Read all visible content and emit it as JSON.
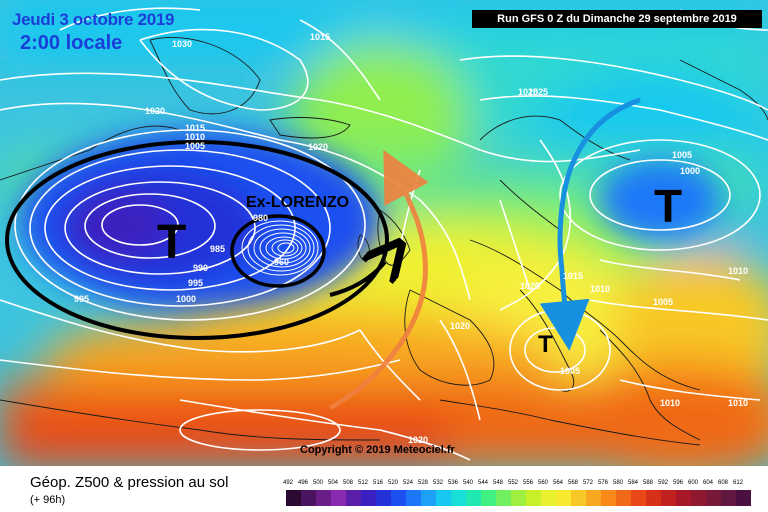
{
  "header": {
    "date_title": "Jeudi 3 octobre 2019",
    "local_time": "2:00 locale",
    "run_info": "Run GFS 0 Z du Dimanche 29 septembre 2019"
  },
  "annotations": {
    "storm_label": "Ex-LORENZO",
    "low_symbols": [
      "T",
      "T",
      "T"
    ]
  },
  "isobar_labels": [
    "1030",
    "1015",
    "1025",
    "1020",
    "1015",
    "1010",
    "1005",
    "1020",
    "980",
    "985",
    "990",
    "995",
    "995",
    "1000",
    "1025",
    "1005",
    "1000",
    "1015",
    "1010",
    "1010",
    "1020",
    "1005",
    "1020",
    "1005",
    "1010",
    "1010",
    "1020",
    "960"
  ],
  "footer": {
    "copyright": "Copyright © 2019 Meteociel.fr",
    "legend_title": "Géop. Z500 & pression au sol",
    "legend_sub": "(+ 96h)",
    "scale_values": [
      "492",
      "496",
      "500",
      "504",
      "508",
      "512",
      "516",
      "520",
      "524",
      "528",
      "532",
      "536",
      "540",
      "544",
      "548",
      "552",
      "556",
      "560",
      "564",
      "568",
      "572",
      "576",
      "580",
      "584",
      "588",
      "592",
      "596",
      "600",
      "604",
      "608",
      "612"
    ],
    "scale_colors": [
      "#2a0a30",
      "#4a1460",
      "#6a1e8a",
      "#8a2ab0",
      "#5a1ea8",
      "#3a20c0",
      "#2430d8",
      "#1c50f0",
      "#1c78f8",
      "#1ca0f8",
      "#18c8f0",
      "#18e0d8",
      "#20e8b0",
      "#40f080",
      "#70f060",
      "#a0f040",
      "#c8f028",
      "#e8f030",
      "#f8e830",
      "#f8c828",
      "#f8a820",
      "#f88818",
      "#f06818",
      "#e84818",
      "#d83018",
      "#c02020",
      "#a81828",
      "#901830",
      "#781838",
      "#601840",
      "#4a1040"
    ]
  },
  "colors": {
    "run_box_bg": "#000000",
    "title_blue": "#1a3fd8",
    "arrow_orange": "#f08040",
    "arrow_blue": "#1890e0",
    "storm_ring": "#000000"
  }
}
